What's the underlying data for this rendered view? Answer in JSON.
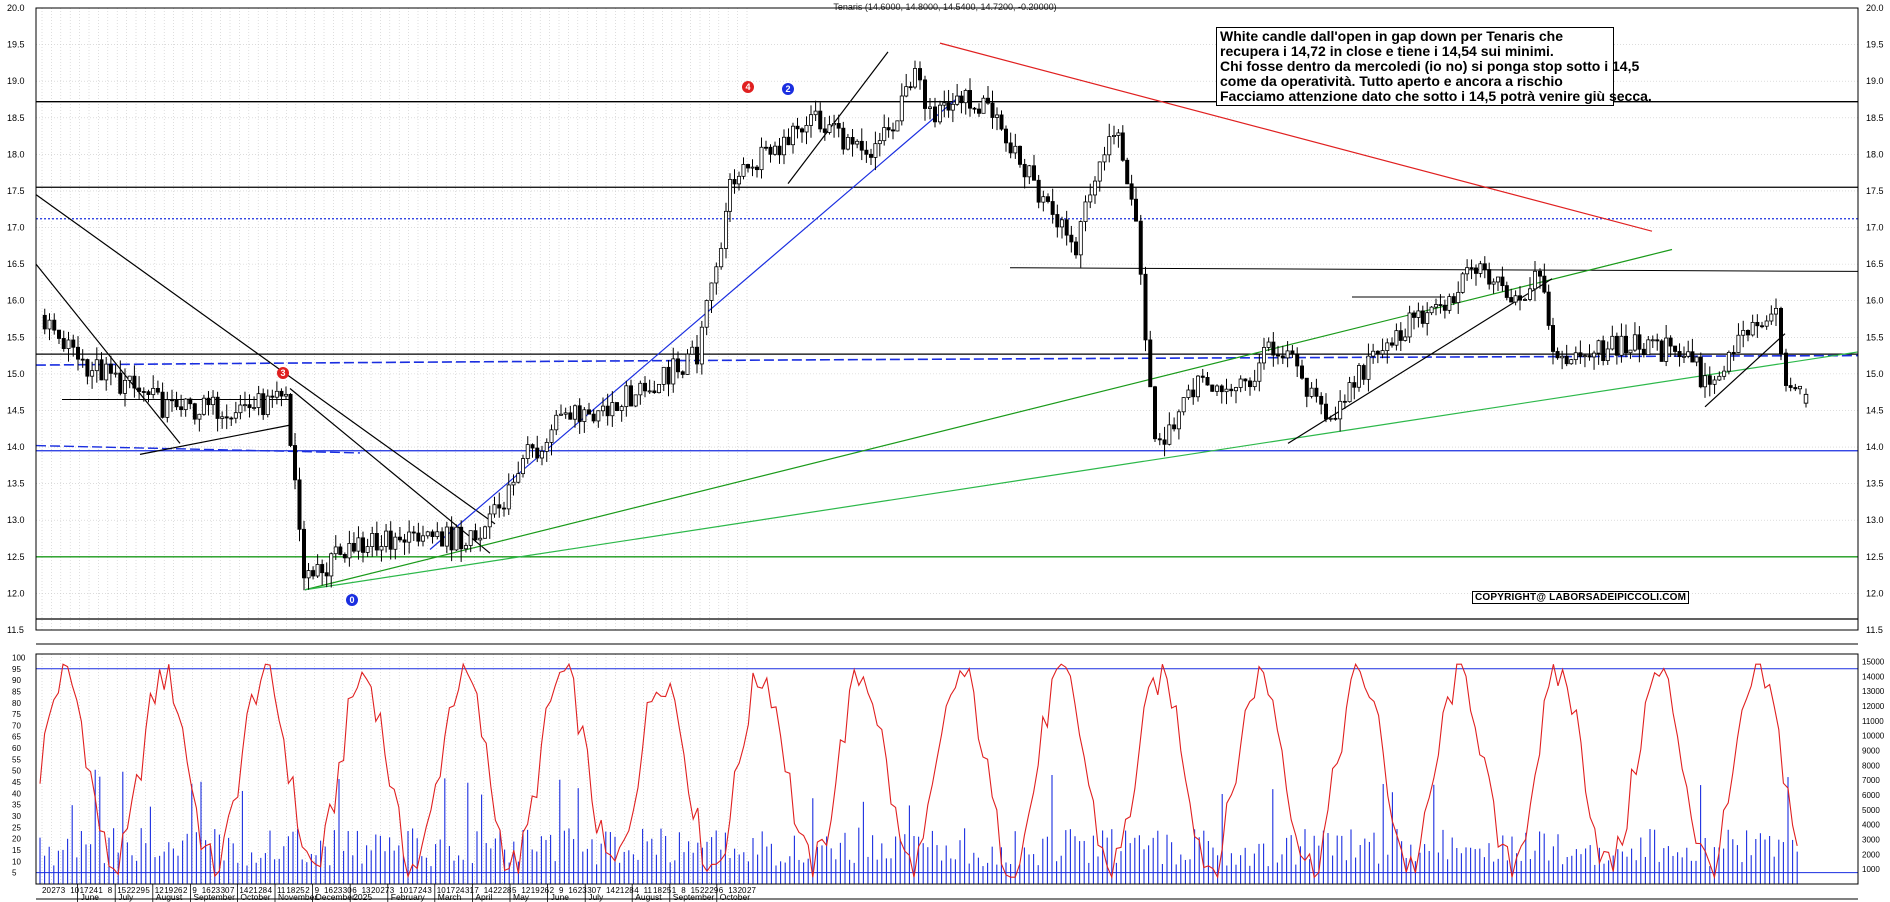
{
  "title": "Tenaris (14.6000, 14.8000, 14.5400, 14.7200, -0.20000)",
  "annotation": {
    "lines": [
      "White candle dall'open in gap down per Tenaris che",
      "recupera i 14,72 in close e tiene i 14,54 sui minimi.",
      "Chi fosse dentro da mercoledi (io no) si ponga stop sotto i 14,5",
      "come da operatività. Tutto aperto e ancora a rischio",
      "Facciamo attenzione dato che sotto i 14,5 potrà venire giù secca."
    ]
  },
  "copyright": "COPYRIGHT@ LABORSADEIPICCOLI.COM",
  "markers": [
    {
      "label": "4",
      "color": "#e02020"
    },
    {
      "label": "2",
      "color": "#1a2ee0"
    },
    {
      "label": "3",
      "color": "#e02020"
    },
    {
      "label": "0",
      "color": "#1a2ee0"
    }
  ],
  "colors": {
    "candle": "#000000",
    "grid": "#c8c8c8",
    "hline": "#000000",
    "blue": "#1a2ee0",
    "red": "#e02020",
    "green": "#1a9a1a",
    "lightgreen": "#2cb84a"
  },
  "chart_data": [
    {
      "type": "candlestick",
      "ylim": [
        11.5,
        20.0
      ],
      "y_ticks": [
        "11.5",
        "12.0",
        "12.5",
        "13.0",
        "13.5",
        "14.0",
        "14.5",
        "15.0",
        "15.5",
        "16.0",
        "16.5",
        "17.0",
        "17.5",
        "18.0",
        "18.5",
        "19.0",
        "19.5",
        "20.0"
      ],
      "horizontal_levels": [
        {
          "value": 18.72,
          "color": "#000000",
          "style": "solid"
        },
        {
          "value": 17.55,
          "color": "#000000",
          "style": "solid"
        },
        {
          "value": 17.12,
          "color": "#1a2ee0",
          "style": "dotted"
        },
        {
          "value": 15.27,
          "color": "#000000",
          "style": "solid"
        },
        {
          "value": 13.95,
          "color": "#1a2ee0",
          "style": "solid"
        },
        {
          "value": 12.5,
          "color": "#1a9a1a",
          "style": "solid"
        },
        {
          "value": 11.65,
          "color": "#000000",
          "style": "solid"
        }
      ],
      "close_anchors": [
        {
          "date_label": "20 May",
          "value": 15.8
        },
        {
          "date_label": "3 Jun",
          "value": 15.2
        },
        {
          "date_label": "24 Jun",
          "value": 14.5
        },
        {
          "date_label": "29 Jul",
          "value": 14.6
        },
        {
          "date_label": "5 Aug",
          "value": 12.2
        },
        {
          "date_label": "19 Aug",
          "value": 12.7
        },
        {
          "date_label": "2 Sep",
          "value": 12.7
        },
        {
          "date_label": "16 Sep",
          "value": 12.8
        },
        {
          "date_label": "30 Sep",
          "value": 13.8
        },
        {
          "date_label": "7 Oct",
          "value": 14.4
        },
        {
          "date_label": "21 Oct",
          "value": 14.6
        },
        {
          "date_label": "28 Oct",
          "value": 14.9
        },
        {
          "date_label": "4 Nov",
          "value": 15.3
        },
        {
          "date_label": "11 Nov",
          "value": 17.1
        },
        {
          "date_label": "25 Nov",
          "value": 17.6
        },
        {
          "date_label": "9 Dec",
          "value": 18.5
        },
        {
          "date_label": "23 Dec",
          "value": 17.9
        },
        {
          "date_label": "6 Jan",
          "value": 19.0
        },
        {
          "date_label": "20 Jan",
          "value": 18.5
        },
        {
          "date_label": "3 Feb",
          "value": 18.8
        },
        {
          "date_label": "17 Feb",
          "value": 18.3
        },
        {
          "date_label": "3 Mar",
          "value": 17.2
        },
        {
          "date_label": "10 Mar",
          "value": 16.8
        },
        {
          "date_label": "24 Mar",
          "value": 18.4
        },
        {
          "date_label": "31 Mar",
          "value": 17.2
        },
        {
          "date_label": "7 Apr",
          "value": 14.0
        },
        {
          "date_label": "14 Apr",
          "value": 14.8
        },
        {
          "date_label": "28 Apr",
          "value": 14.8
        },
        {
          "date_label": "12 May",
          "value": 15.4
        },
        {
          "date_label": "26 May",
          "value": 14.4
        },
        {
          "date_label": "9 Jun",
          "value": 15.5
        },
        {
          "date_label": "23 Jun",
          "value": 15.9
        },
        {
          "date_label": "7 Jul",
          "value": 16.4
        },
        {
          "date_label": "21 Jul",
          "value": 16.0
        },
        {
          "date_label": "28 Jul",
          "value": 16.5
        },
        {
          "date_label": "4 Aug",
          "value": 15.2
        },
        {
          "date_label": "18 Aug",
          "value": 15.4
        },
        {
          "date_label": "1 Sep",
          "value": 15.3
        },
        {
          "date_label": "15 Sep",
          "value": 14.9
        },
        {
          "date_label": "29 Sep",
          "value": 15.6
        },
        {
          "date_label": "6 Oct",
          "value": 15.8
        },
        {
          "date_label": "13 Oct",
          "value": 14.72
        },
        {
          "date_label": "17 Oct",
          "value": 14.72
        }
      ],
      "last_candle": {
        "open": 14.6,
        "high": 14.8,
        "low": 14.54,
        "close": 14.72,
        "change": -0.2
      }
    },
    {
      "type": "line+bar",
      "left_ticks": [
        "5",
        "10",
        "15",
        "20",
        "25",
        "30",
        "35",
        "40",
        "45",
        "50",
        "55",
        "60",
        "65",
        "70",
        "75",
        "80",
        "85",
        "90",
        "95",
        "100"
      ],
      "left_ylim": [
        0,
        100
      ],
      "right_ticks": [
        "1000",
        "2000",
        "3000",
        "4000",
        "5000",
        "6000",
        "7000",
        "8000",
        "9000",
        "10000",
        "11000",
        "12000",
        "13000",
        "14000",
        "15000"
      ],
      "right_ylim": [
        0,
        15500
      ],
      "levels": [
        95,
        5
      ],
      "series": [
        {
          "kind": "line",
          "color": "#e02020"
        },
        {
          "kind": "bar",
          "color": "#1a2ee0"
        }
      ]
    }
  ],
  "x_axis": {
    "day_ticks": [
      "20",
      "27",
      "3",
      "10",
      "17",
      "24",
      "1",
      "8",
      "15",
      "22",
      "29",
      "5",
      "12",
      "19",
      "26",
      "2",
      "9",
      "16",
      "23",
      "30",
      "7",
      "14",
      "21",
      "28",
      "4",
      "11",
      "18",
      "25",
      "2",
      "9",
      "16",
      "23",
      "30",
      "6",
      "13",
      "20",
      "27",
      "3",
      "10",
      "17",
      "24",
      "3",
      "10",
      "17",
      "24",
      "31",
      "7",
      "14",
      "22",
      "28",
      "5",
      "12",
      "19",
      "26",
      "2",
      "9",
      "16",
      "23",
      "30",
      "7",
      "14",
      "21",
      "28",
      "4",
      "11",
      "18",
      "25",
      "1",
      "8",
      "15",
      "22",
      "29",
      "6",
      "13",
      "20",
      "27"
    ],
    "months": [
      "June",
      "July",
      "August",
      "September",
      "October",
      "November",
      "December",
      "2025",
      "February",
      "March",
      "April",
      "May",
      "June",
      "July",
      "August",
      "September",
      "October"
    ]
  }
}
